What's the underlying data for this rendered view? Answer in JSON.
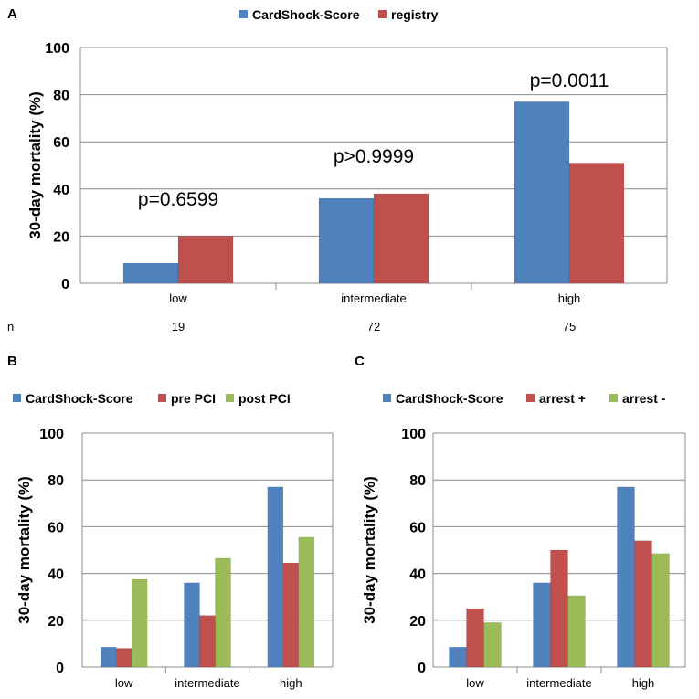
{
  "chart_data": [
    {
      "panel": "A",
      "type": "bar",
      "ylabel": "30-day mortality (%)",
      "ylim": [
        0,
        100
      ],
      "yticks": [
        0,
        20,
        40,
        60,
        80,
        100
      ],
      "grid": true,
      "legend_position": "top",
      "categories": [
        "low",
        "intermediate",
        "high"
      ],
      "series": [
        {
          "name": "CardShock-Score",
          "color": "#4F81BD",
          "values": [
            8.5,
            36,
            77
          ]
        },
        {
          "name": "registry",
          "color": "#C0504D",
          "values": [
            20,
            38,
            51
          ]
        }
      ],
      "annotations": [
        "p=0.6599",
        "p>0.9999",
        "p=0.0011"
      ],
      "n_label": "n",
      "n_values": [
        "19",
        "72",
        "75"
      ]
    },
    {
      "panel": "B",
      "type": "bar",
      "ylabel": "30-day mortality (%)",
      "ylim": [
        0,
        100
      ],
      "yticks": [
        0,
        20,
        40,
        60,
        80,
        100
      ],
      "grid": true,
      "legend_position": "top",
      "categories": [
        "low",
        "intermediate",
        "high"
      ],
      "series": [
        {
          "name": "CardShock-Score",
          "color": "#4F81BD",
          "values": [
            8.5,
            36,
            77
          ]
        },
        {
          "name": "pre PCI",
          "color": "#C0504D",
          "values": [
            8,
            22,
            44.5
          ]
        },
        {
          "name": "post PCI",
          "color": "#9BBB59",
          "values": [
            37.5,
            46.5,
            55.5
          ]
        }
      ]
    },
    {
      "panel": "C",
      "type": "bar",
      "ylabel": "30-day mortality (%)",
      "ylim": [
        0,
        100
      ],
      "yticks": [
        0,
        20,
        40,
        60,
        80,
        100
      ],
      "grid": true,
      "legend_position": "top",
      "categories": [
        "low",
        "intermediate",
        "high"
      ],
      "series": [
        {
          "name": "CardShock-Score",
          "color": "#4F81BD",
          "values": [
            8.5,
            36,
            77
          ]
        },
        {
          "name": "arrest +",
          "color": "#C0504D",
          "values": [
            25,
            50,
            54
          ]
        },
        {
          "name": "arrest -",
          "color": "#9BBB59",
          "values": [
            19,
            30.5,
            48.5
          ]
        }
      ]
    }
  ]
}
